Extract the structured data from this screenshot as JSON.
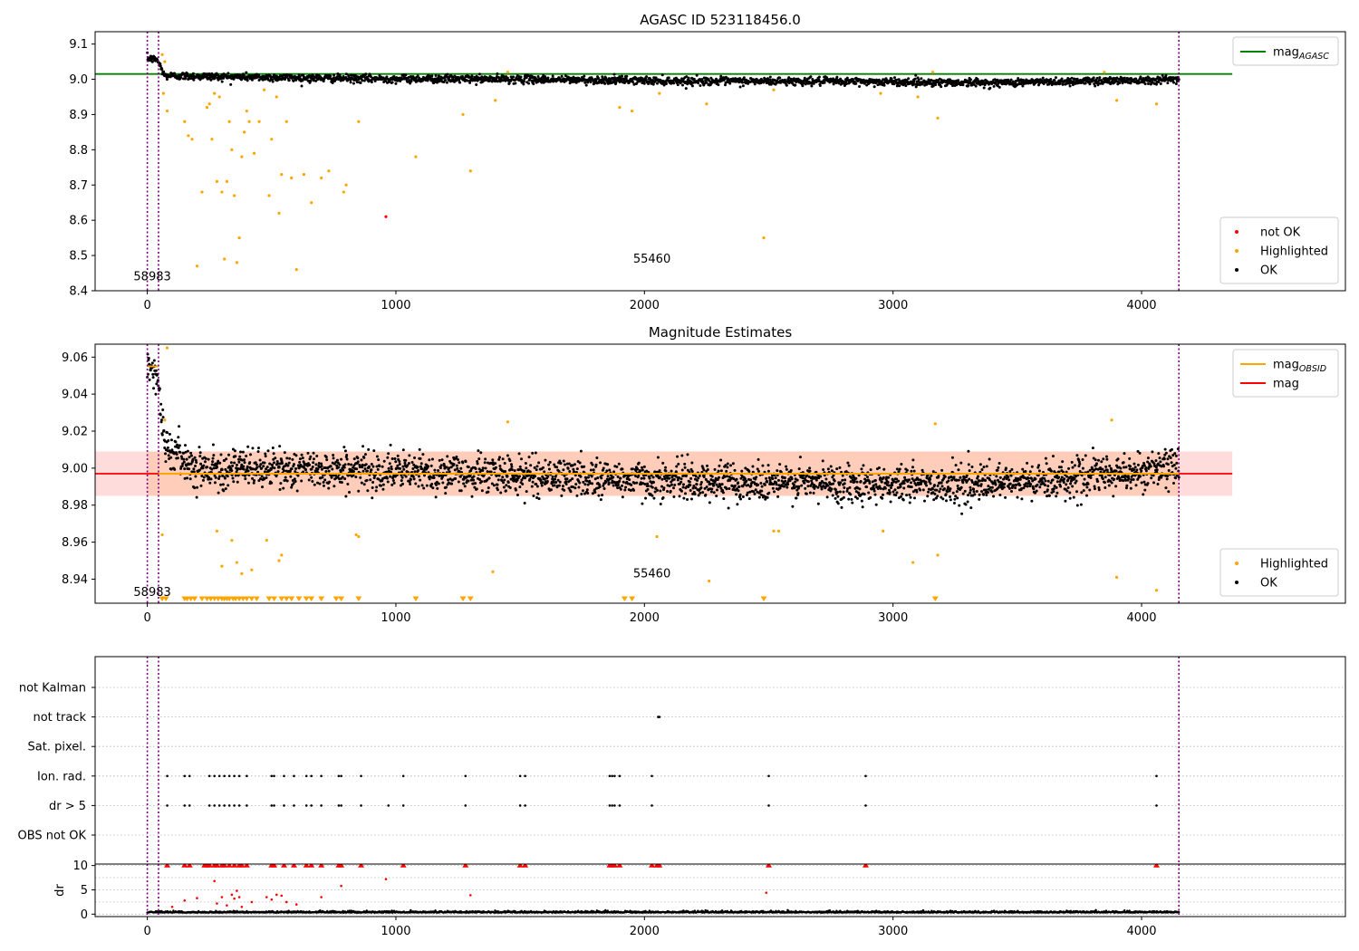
{
  "chart_data": [
    {
      "type": "scatter",
      "title": "AGASC ID 523118456.0",
      "xlabel": "",
      "ylabel": "",
      "xlim": [
        -210,
        4820
      ],
      "ylim": [
        8.4,
        9.135
      ],
      "x_ticks": [
        0,
        1000,
        2000,
        3000,
        4000
      ],
      "y_ticks": [
        8.4,
        8.5,
        8.6,
        8.7,
        8.8,
        8.9,
        9.0,
        9.1
      ],
      "vlines": [
        0,
        45,
        4150
      ],
      "hlines": [
        {
          "name": "mag_AGASC",
          "value": 9.015,
          "color": "#008000",
          "xmax": 4365
        }
      ],
      "annotations": [
        {
          "text": "58983",
          "x": 20,
          "y": 8.43
        },
        {
          "text": "55460",
          "x": 2030,
          "y": 8.48
        }
      ],
      "legends": [
        {
          "position": "top-right",
          "entries": [
            {
              "label": "mag",
              "sub": "AGASC",
              "kind": "line",
              "color": "#008000"
            }
          ]
        },
        {
          "position": "lower-right",
          "entries": [
            {
              "label": "not OK",
              "kind": "dot",
              "color": "#ff0000"
            },
            {
              "label": "Highlighted",
              "kind": "dot",
              "color": "#ffa500"
            },
            {
              "label": "OK",
              "kind": "dot",
              "color": "#000000"
            }
          ]
        }
      ],
      "series": [
        {
          "name": "OK",
          "color": "#000000",
          "x_range": [
            0,
            4150
          ],
          "points": 2400,
          "trend": [
            [
              0,
              9.06
            ],
            [
              40,
              9.055
            ],
            [
              70,
              9.01
            ],
            [
              800,
              9.002
            ],
            [
              1500,
              9.0
            ],
            [
              2200,
              8.995
            ],
            [
              2800,
              8.994
            ],
            [
              3400,
              8.99
            ],
            [
              4150,
              9.0
            ]
          ],
          "scatter": 0.01
        },
        {
          "name": "Highlighted",
          "color": "#ffa500",
          "x": [
            60,
            65,
            70,
            80,
            150,
            165,
            180,
            200,
            220,
            240,
            250,
            260,
            270,
            280,
            290,
            300,
            310,
            320,
            330,
            340,
            350,
            360,
            370,
            380,
            390,
            400,
            410,
            430,
            450,
            470,
            490,
            500,
            520,
            530,
            540,
            560,
            580,
            600,
            630,
            660,
            700,
            730,
            790,
            800,
            850,
            1080,
            1270,
            1300,
            1400,
            1450,
            1900,
            1950,
            2060,
            2250,
            2480,
            2520,
            2950,
            3100,
            3160,
            3180,
            3850,
            3900,
            4060
          ],
          "y": [
            9.07,
            8.96,
            9.05,
            8.91,
            8.88,
            8.84,
            8.83,
            8.47,
            8.68,
            8.92,
            8.93,
            8.83,
            8.96,
            8.71,
            8.95,
            8.68,
            8.49,
            8.71,
            8.88,
            8.8,
            8.67,
            8.48,
            8.55,
            8.78,
            8.85,
            8.91,
            8.88,
            8.79,
            8.88,
            8.97,
            8.67,
            8.83,
            8.95,
            8.62,
            8.73,
            8.88,
            8.72,
            8.46,
            8.73,
            8.65,
            8.72,
            8.74,
            8.68,
            8.7,
            8.88,
            8.78,
            8.9,
            8.74,
            8.94,
            9.02,
            8.92,
            8.91,
            8.96,
            8.93,
            8.55,
            8.97,
            8.96,
            8.95,
            9.02,
            8.89,
            9.02,
            8.94,
            8.93
          ]
        },
        {
          "name": "not OK",
          "color": "#ff0000",
          "x": [
            960
          ],
          "y": [
            8.61
          ]
        }
      ]
    },
    {
      "type": "scatter",
      "title": "Magnitude Estimates",
      "xlabel": "",
      "ylabel": "",
      "xlim": [
        -210,
        4820
      ],
      "ylim": [
        8.927,
        9.067
      ],
      "x_ticks": [
        0,
        1000,
        2000,
        3000,
        4000
      ],
      "y_ticks": [
        8.94,
        8.96,
        8.98,
        9.0,
        9.02,
        9.04,
        9.06
      ],
      "vlines": [
        0,
        45,
        4150
      ],
      "band": {
        "low": 8.985,
        "high": 9.009,
        "xmax": 4365,
        "color": "#ffc0c0"
      },
      "hlines": [
        {
          "name": "mag",
          "value": 8.997,
          "color": "#ff0000",
          "xmax": 4365
        }
      ],
      "obsid_segments": [
        {
          "x0": 45,
          "x1": 4150,
          "y": 8.997,
          "color": "#ffa500"
        },
        {
          "x0": 0,
          "x1": 45,
          "y": 9.055,
          "color": "#ffa500"
        }
      ],
      "annotations": [
        {
          "text": "58983",
          "x": 20,
          "y": 8.931
        },
        {
          "text": "55460",
          "x": 2030,
          "y": 8.941
        }
      ],
      "legends": [
        {
          "position": "top-right",
          "entries": [
            {
              "label": "mag",
              "sub": "OBSID",
              "kind": "line",
              "color": "#ffa500"
            },
            {
              "label": "mag",
              "sub": "",
              "kind": "line",
              "color": "#ff0000"
            }
          ]
        },
        {
          "position": "lower-right",
          "entries": [
            {
              "label": "Highlighted",
              "kind": "dot",
              "color": "#ffa500"
            },
            {
              "label": "OK",
              "kind": "dot",
              "color": "#000000"
            }
          ]
        }
      ],
      "series": [
        {
          "name": "OK",
          "color": "#000000",
          "x_range": [
            0,
            4150
          ],
          "points": 2800,
          "trend": [
            [
              0,
              9.058
            ],
            [
              40,
              9.05
            ],
            [
              70,
              9.012
            ],
            [
              200,
              9.0
            ],
            [
              800,
              8.999
            ],
            [
              1500,
              8.996
            ],
            [
              2200,
              8.993
            ],
            [
              2800,
              8.992
            ],
            [
              3400,
              8.991
            ],
            [
              4150,
              9.0
            ]
          ],
          "scatter": 0.009
        },
        {
          "name": "Highlighted",
          "color": "#ffa500",
          "x": [
            60,
            70,
            80,
            280,
            300,
            340,
            360,
            380,
            420,
            480,
            530,
            540,
            840,
            850,
            1390,
            1450,
            2050,
            2260,
            2520,
            2540,
            2960,
            3080,
            3170,
            3180,
            3880,
            3900,
            4060
          ],
          "y": [
            8.964,
            9.026,
            9.065,
            8.966,
            8.947,
            8.961,
            8.949,
            8.943,
            8.945,
            8.961,
            8.95,
            8.953,
            8.964,
            8.963,
            8.944,
            9.025,
            8.963,
            8.939,
            8.966,
            8.966,
            8.966,
            8.949,
            9.024,
            8.953,
            9.026,
            8.941,
            8.934
          ]
        },
        {
          "name": "Highlighted (off-scale)",
          "color": "#ffa500",
          "marker": "triangle-down",
          "x": [
            60,
            75,
            150,
            160,
            175,
            190,
            220,
            240,
            255,
            270,
            285,
            300,
            310,
            320,
            330,
            345,
            355,
            370,
            385,
            400,
            420,
            440,
            490,
            510,
            540,
            560,
            580,
            610,
            640,
            660,
            700,
            760,
            780,
            850,
            1080,
            1270,
            1300,
            1920,
            1950,
            2480,
            3170
          ],
          "y": 8.928
        }
      ]
    },
    {
      "type": "scatter",
      "title": "",
      "xlabel": "",
      "ylabel": "",
      "xlim": [
        -210,
        4820
      ],
      "vlines": [
        0,
        45,
        4150
      ],
      "categories": [
        "not Kalman",
        "not track",
        "Sat. pixel.",
        "Ion. rad.",
        "dr > 5",
        "OBS not OK"
      ],
      "flags": [
        {
          "category": "not track",
          "x": [
            2055,
            2060
          ]
        },
        {
          "category": "Ion. rad.",
          "x": [
            80,
            150,
            170,
            250,
            270,
            290,
            310,
            330,
            350,
            370,
            400,
            500,
            510,
            550,
            590,
            640,
            660,
            700,
            770,
            780,
            860,
            1030,
            1280,
            1500,
            1520,
            1860,
            1870,
            1880,
            1900,
            2030,
            2500,
            2890,
            4060
          ]
        },
        {
          "category": "dr > 5",
          "x": [
            80,
            150,
            170,
            250,
            270,
            290,
            310,
            330,
            350,
            370,
            400,
            500,
            510,
            550,
            590,
            640,
            660,
            700,
            770,
            780,
            860,
            970,
            1030,
            1280,
            1500,
            1520,
            1860,
            1870,
            1880,
            1900,
            2030,
            2500,
            2890,
            4060
          ]
        }
      ]
    },
    {
      "type": "scatter",
      "title": "",
      "xlabel": "",
      "ylabel": "dr",
      "xlim": [
        -210,
        4820
      ],
      "ylim": [
        -0.5,
        10.3
      ],
      "x_ticks": [
        0,
        1000,
        2000,
        3000,
        4000
      ],
      "y_ticks": [
        0,
        5,
        10
      ],
      "vlines": [
        0,
        45,
        4150
      ],
      "series": [
        {
          "name": "OK",
          "color": "#000000",
          "x_range": [
            0,
            4150
          ],
          "points": 2300,
          "trend": [
            [
              0,
              0.3
            ],
            [
              4150,
              0.3
            ]
          ],
          "scatter": 0.25
        },
        {
          "name": "dr > 5",
          "color": "#ff0000",
          "x": [
            100,
            150,
            200,
            270,
            280,
            300,
            320,
            340,
            350,
            360,
            370,
            380,
            420,
            480,
            500,
            520,
            540,
            560,
            600,
            700,
            780,
            960,
            1300,
            2490
          ],
          "y": [
            1.5,
            2.8,
            3.3,
            6.8,
            2.2,
            3.5,
            1.8,
            4.0,
            3.2,
            4.8,
            3.5,
            1.5,
            2.5,
            3.5,
            3.0,
            4.0,
            3.8,
            2.5,
            2.0,
            3.5,
            5.8,
            7.2,
            3.9,
            4.4
          ]
        },
        {
          "name": "dr (capped)",
          "color": "#ff0000",
          "marker": "triangle-up",
          "x": [
            80,
            150,
            170,
            230,
            240,
            250,
            270,
            280,
            300,
            310,
            330,
            350,
            370,
            380,
            400,
            500,
            510,
            550,
            590,
            640,
            660,
            700,
            770,
            780,
            860,
            1030,
            1280,
            1500,
            1520,
            1860,
            1870,
            1880,
            1900,
            2030,
            2050,
            2060,
            2500,
            2890,
            4060
          ],
          "y": 10
        }
      ]
    }
  ]
}
